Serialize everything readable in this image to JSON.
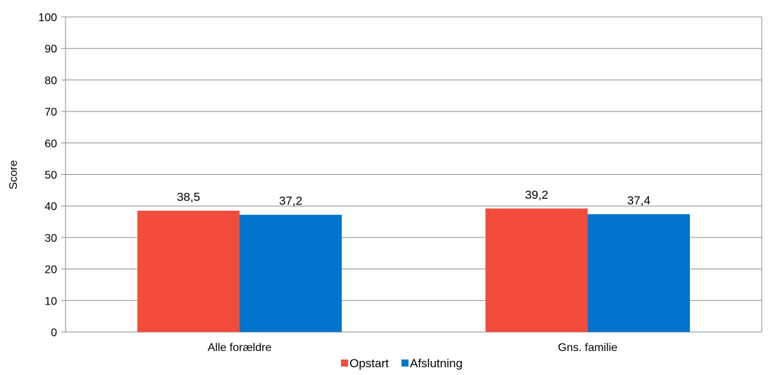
{
  "chart_data": {
    "type": "bar",
    "title": "",
    "xlabel": "",
    "ylabel": "Score",
    "ylim": [
      0,
      100
    ],
    "yticks": [
      0,
      10,
      20,
      30,
      40,
      50,
      60,
      70,
      80,
      90,
      100
    ],
    "grid": true,
    "legend_position": "bottom",
    "categories": [
      "Alle forældre",
      "Gns. familie"
    ],
    "series": [
      {
        "name": "Opstart",
        "color": "#f44c3c",
        "values": [
          38.5,
          39.2
        ],
        "labels": [
          "38,5",
          "39,2"
        ]
      },
      {
        "name": "Afslutning",
        "color": "#0074cc",
        "values": [
          37.2,
          37.4
        ],
        "labels": [
          "37,2",
          "37,4"
        ]
      }
    ]
  }
}
